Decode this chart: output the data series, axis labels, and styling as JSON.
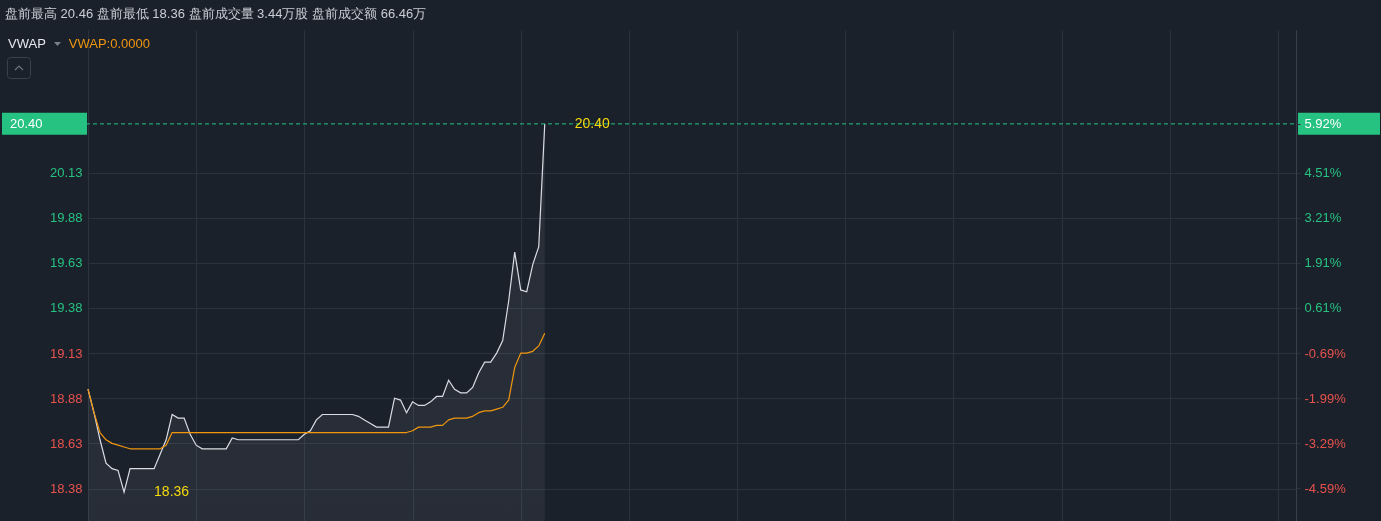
{
  "chart_data": {
    "type": "line",
    "title": "盘前最高 20.46 盘前最低 18.36 盘前成交量 3.44万股 盘前成交额 66.46万",
    "annotations": [
      "VWAP"
    ],
    "categories": [
      null,
      null,
      null,
      null,
      null,
      null,
      null,
      null,
      null,
      null,
      null,
      null,
      null,
      null,
      null,
      null,
      null,
      null,
      null,
      null,
      null,
      null,
      null,
      null,
      null,
      null,
      null,
      null,
      null,
      null,
      null,
      null,
      null,
      null,
      null,
      null,
      null,
      null,
      null,
      null,
      null,
      null,
      null,
      null,
      null,
      null,
      null,
      null,
      null,
      null,
      null,
      null,
      null,
      null,
      null,
      null,
      null,
      null,
      null,
      null,
      null,
      null,
      null,
      null,
      null,
      null,
      null,
      null,
      null,
      null,
      null,
      null,
      null,
      null,
      null,
      null,
      null,
      null,
      null,
      null,
      null,
      null,
      null,
      null,
      null,
      null,
      null,
      null,
      null,
      null,
      null,
      null,
      null,
      null,
      null,
      null,
      null,
      null,
      null,
      null,
      null,
      null,
      null,
      null,
      null,
      null,
      null,
      null,
      null,
      null,
      null,
      null,
      null,
      null,
      null,
      null,
      null,
      null,
      null,
      null,
      null,
      null,
      null,
      null,
      null,
      null,
      null,
      null,
      null,
      null,
      null,
      null,
      null,
      null,
      null,
      null,
      null,
      null,
      null,
      null,
      null,
      null,
      null,
      null,
      null,
      null,
      null,
      null,
      null,
      null,
      null,
      null,
      null,
      null,
      null,
      null,
      null,
      null,
      null,
      null,
      null,
      null,
      null,
      null,
      null,
      null,
      null,
      null,
      null,
      null,
      null,
      null,
      null,
      null,
      null,
      null,
      null,
      null,
      null,
      null,
      null,
      null,
      null,
      null,
      null,
      null,
      null,
      null,
      null,
      null,
      null,
      null,
      null,
      null,
      null,
      null,
      null,
      null,
      null,
      null,
      null,
      null
    ],
    "series": [
      {
        "type": "area",
        "color": "#d9dde3",
        "values": [
          18.93,
          18.8,
          18.65,
          18.52,
          18.49,
          18.48,
          18.36,
          18.49,
          18.49,
          18.49,
          18.49,
          18.49,
          18.57,
          18.65,
          18.79,
          18.77,
          18.77,
          18.68,
          18.62,
          18.6,
          18.6,
          18.6,
          18.6,
          18.6,
          18.66,
          18.65,
          18.65,
          18.65,
          18.65,
          18.65,
          18.65,
          18.65,
          18.65,
          18.65,
          18.65,
          18.65,
          18.68,
          18.7,
          18.76,
          18.79,
          18.79,
          18.79,
          18.79,
          18.79,
          18.79,
          18.78,
          18.76,
          18.74,
          18.72,
          18.72,
          18.72,
          18.88,
          18.87,
          18.8,
          18.86,
          18.84,
          18.84,
          18.86,
          18.89,
          18.89,
          18.98,
          18.93,
          18.91,
          18.91,
          18.94,
          19.02,
          19.08,
          19.08,
          19.13,
          19.2,
          19.42,
          19.69,
          19.48,
          19.47,
          19.62,
          19.72,
          20.4,
          null,
          null,
          null,
          null,
          null,
          null,
          null,
          null,
          null,
          null,
          null,
          null,
          null,
          null,
          null,
          null,
          null,
          null,
          null,
          null,
          null,
          null,
          null,
          null,
          null,
          null,
          null,
          null,
          null,
          null,
          null,
          null,
          null,
          null,
          null,
          null,
          null,
          null,
          null,
          null,
          null,
          null,
          null,
          null,
          null,
          null,
          null,
          null,
          null,
          null,
          null,
          null,
          null,
          null,
          null,
          null,
          null,
          null,
          null,
          null,
          null,
          null,
          null,
          null,
          null,
          null,
          null,
          null,
          null,
          null,
          null,
          null,
          null,
          null,
          null,
          null,
          null,
          null,
          null,
          null,
          null,
          null,
          null,
          null,
          null,
          null,
          null,
          null,
          null,
          null,
          null,
          null,
          null,
          null,
          null,
          null,
          null,
          null,
          null,
          null,
          null,
          null,
          null,
          null,
          null,
          null,
          null,
          null,
          null,
          null,
          null,
          null,
          null,
          null,
          null,
          null,
          null,
          null,
          null,
          null,
          null,
          null,
          null,
          null,
          null
        ]
      },
      {
        "name": "VWAP:0.0000",
        "type": "line",
        "color": "#f0960f",
        "values": [
          18.93,
          18.8,
          18.69,
          18.65,
          18.63,
          18.62,
          18.61,
          18.6,
          18.6,
          18.6,
          18.6,
          18.6,
          18.6,
          18.62,
          18.69,
          18.69,
          18.69,
          18.69,
          18.69,
          18.69,
          18.69,
          18.69,
          18.69,
          18.69,
          18.69,
          18.69,
          18.69,
          18.69,
          18.69,
          18.69,
          18.69,
          18.69,
          18.69,
          18.69,
          18.69,
          18.69,
          18.69,
          18.69,
          18.69,
          18.69,
          18.69,
          18.69,
          18.69,
          18.69,
          18.69,
          18.69,
          18.69,
          18.69,
          18.69,
          18.69,
          18.69,
          18.69,
          18.69,
          18.69,
          18.7,
          18.72,
          18.72,
          18.72,
          18.73,
          18.73,
          18.76,
          18.77,
          18.77,
          18.77,
          18.78,
          18.8,
          18.81,
          18.81,
          18.82,
          18.83,
          18.87,
          19.05,
          19.13,
          19.13,
          19.14,
          19.17,
          19.24,
          null,
          null,
          null,
          null,
          null,
          null,
          null,
          null,
          null,
          null,
          null,
          null,
          null,
          null,
          null,
          null,
          null,
          null,
          null,
          null,
          null,
          null,
          null,
          null,
          null,
          null,
          null,
          null,
          null,
          null,
          null,
          null,
          null,
          null,
          null,
          null,
          null,
          null,
          null,
          null,
          null,
          null,
          null,
          null,
          null,
          null,
          null,
          null,
          null,
          null,
          null,
          null,
          null,
          null,
          null,
          null,
          null,
          null,
          null,
          null,
          null,
          null,
          null,
          null,
          null,
          null,
          null,
          null,
          null,
          null,
          null,
          null,
          null,
          null,
          null,
          null,
          null,
          null,
          null,
          null,
          null,
          null,
          null,
          null,
          null,
          null,
          null,
          null,
          null,
          null,
          null,
          null,
          null,
          null,
          null,
          null,
          null,
          null,
          null,
          null,
          null,
          null,
          null,
          null,
          null,
          null,
          null,
          null,
          null,
          null,
          null,
          null,
          null,
          null,
          null,
          null,
          null,
          null,
          null,
          null,
          null,
          null,
          null,
          null,
          null
        ]
      }
    ],
    "value_labels": [
      [
        null,
        null,
        null,
        null,
        null,
        null,
        "18.36",
        null,
        null,
        null,
        null,
        null,
        null,
        null,
        null,
        null,
        null,
        null,
        null,
        null,
        null,
        null,
        null,
        null,
        null,
        null,
        null,
        null,
        null,
        null,
        null,
        null,
        null,
        null,
        null,
        null,
        null,
        null,
        null,
        null,
        null,
        null,
        null,
        null,
        null,
        null,
        null,
        null,
        null,
        null,
        null,
        null,
        null,
        null,
        null,
        null,
        null,
        null,
        null,
        null,
        null,
        null,
        null,
        null,
        null,
        null,
        null,
        null,
        null,
        null,
        null,
        null,
        null,
        null,
        null,
        null,
        "20.40"
      ]
    ],
    "ylim": [
      18.2,
      20.92
    ],
    "yticks": [
      18.38,
      18.63,
      18.88,
      19.13,
      19.38,
      19.63,
      19.88,
      20.13
    ],
    "y2lim": [
      -5.53,
      8.62
    ],
    "y2ticks": [
      {
        "value": 5.92,
        "label": "5.92%"
      },
      {
        "value": 4.51,
        "label": "4.51%"
      },
      {
        "value": 3.21,
        "label": "3.21%"
      },
      {
        "value": 1.91,
        "label": "1.91%"
      },
      {
        "value": 0.61,
        "label": "0.61%"
      },
      {
        "value": -0.69,
        "label": "-0.69%"
      },
      {
        "value": -1.99,
        "label": "-1.99%"
      },
      {
        "value": -3.29,
        "label": "-3.29%"
      },
      {
        "value": -4.59,
        "label": "-4.59%"
      }
    ],
    "ref_lines": [
      {
        "axis": "y",
        "value": 20.4,
        "label": "20.40",
        "color": "#26c281",
        "line_style": "dashed"
      }
    ],
    "grid": true,
    "legend": "top left",
    "tick_labels": "y"
  }
}
